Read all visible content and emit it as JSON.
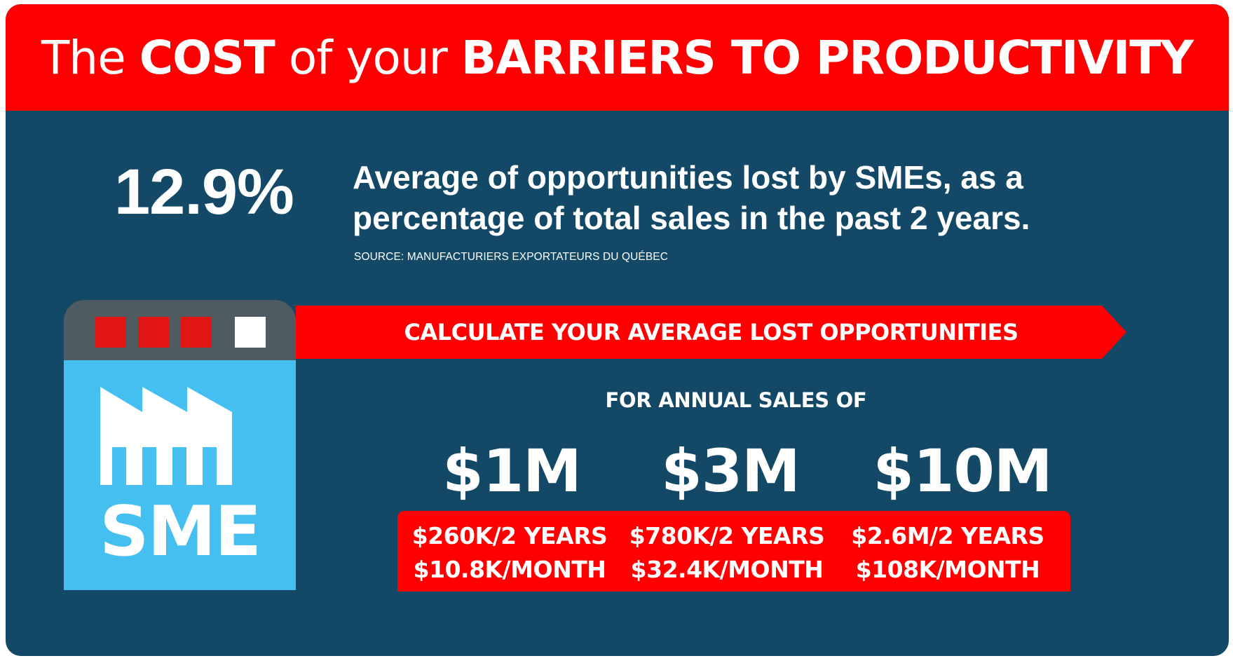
{
  "header": {
    "part1": "The",
    "part2": "COST",
    "part3": "of your",
    "part4": "BARRIERS TO PRODUCTIVITY"
  },
  "stat": {
    "value": "12.9%",
    "description": "Average of opportunities lost by SMEs, as a percentage of total sales in the past 2 years.",
    "source": "SOURCE: MANUFACTURIERS EXPORTATEURS DU QUÉBEC"
  },
  "sme_icon": {
    "label": "SME",
    "icon": "factory-icon",
    "squares": [
      "#e11515",
      "#e11515",
      "#e11515",
      "#ffffff"
    ]
  },
  "banner": {
    "text": "CALCULATE YOUR AVERAGE LOST OPPORTUNITIES"
  },
  "calculator": {
    "annual_label": "FOR ANNUAL SALES OF",
    "columns": [
      {
        "amount": "$1M",
        "per_two_years": "$260K/2 YEARS",
        "per_month": "$10.8K/MONTH"
      },
      {
        "amount": "$3M",
        "per_two_years": "$780K/2 YEARS",
        "per_month": "$32.4K/MONTH"
      },
      {
        "amount": "$10M",
        "per_two_years": "$2.6M/2 YEARS",
        "per_month": "$108K/MONTH"
      }
    ]
  },
  "colors": {
    "brand_red": "#fe0000",
    "navy": "#134866",
    "sky_blue": "#45bfef",
    "icon_gray": "#4f5b63"
  }
}
